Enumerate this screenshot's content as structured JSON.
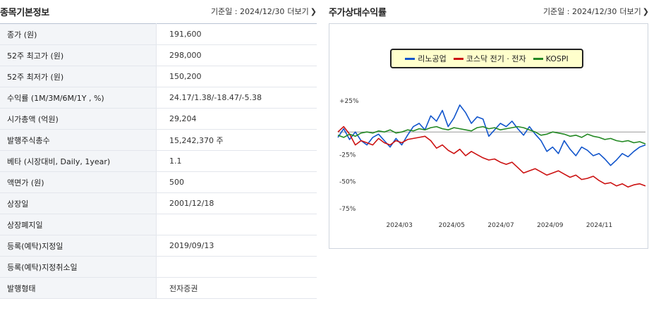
{
  "left": {
    "title": "종목기본정보",
    "date_label": "기준일 : 2024/12/30",
    "more_label": "더보기",
    "rows": [
      {
        "label": "종가 (원)",
        "value": "191,600"
      },
      {
        "label": "52주 최고가 (원)",
        "value": "298,000"
      },
      {
        "label": "52주 최저가 (원)",
        "value": "150,200"
      },
      {
        "label": "수익률 (1M/3M/6M/1Y , %)",
        "value": "24.17/1.38/-18.47/-5.38"
      },
      {
        "label": "시가총액 (억원)",
        "value": "29,204"
      },
      {
        "label": "발행주식총수",
        "value": "15,242,370 주"
      },
      {
        "label": "베타 (시장대비, Daily, 1year)",
        "value": "1.1"
      },
      {
        "label": "액면가 (원)",
        "value": "500"
      },
      {
        "label": "상장일",
        "value": "2001/12/18"
      },
      {
        "label": "상장폐지일",
        "value": ""
      },
      {
        "label": "등록(예탁)지정일",
        "value": "2019/09/13"
      },
      {
        "label": "등록(예탁)지정취소일",
        "value": ""
      },
      {
        "label": "발행형태",
        "value": "전자증권"
      }
    ]
  },
  "right": {
    "title": "주가상대수익률",
    "date_label": "기준일 : 2024/12/30",
    "more_label": "더보기"
  },
  "chart_data": {
    "type": "line",
    "title": "주가상대수익률",
    "ylabel": "",
    "xlabel": "",
    "ylim": [
      -75,
      40
    ],
    "y_ticks": [
      25,
      -25,
      -50,
      -75
    ],
    "y_tick_labels": [
      "+25%",
      "-25%",
      "-50%",
      "-75%"
    ],
    "x_ticks": [
      "2024/03",
      "2024/05",
      "2024/07",
      "2024/09",
      "2024/11"
    ],
    "legend_position": "top-center",
    "series": [
      {
        "name": "리노공업",
        "color": "#1155cc",
        "values": [
          -5,
          3,
          -7,
          0,
          -8,
          -12,
          -5,
          -2,
          -8,
          -14,
          -6,
          -12,
          -3,
          5,
          8,
          2,
          15,
          10,
          20,
          5,
          13,
          25,
          18,
          8,
          14,
          12,
          -4,
          2,
          8,
          5,
          10,
          3,
          -3,
          5,
          -2,
          -8,
          -18,
          -14,
          -20,
          -8,
          -16,
          -22,
          -14,
          -17,
          -22,
          -20,
          -25,
          -31,
          -26,
          -20,
          -23,
          -18,
          -14,
          -12
        ]
      },
      {
        "name": "코스닥 전기 · 전자",
        "color": "#cc1111",
        "values": [
          0,
          5,
          -2,
          -12,
          -8,
          -10,
          -12,
          -6,
          -10,
          -12,
          -8,
          -10,
          -7,
          -6,
          -5,
          -4,
          -8,
          -15,
          -12,
          -17,
          -20,
          -16,
          -22,
          -18,
          -21,
          -24,
          -26,
          -25,
          -28,
          -30,
          -28,
          -33,
          -38,
          -36,
          -34,
          -37,
          -40,
          -38,
          -36,
          -39,
          -42,
          -40,
          -44,
          -43,
          -41,
          -45,
          -48,
          -47,
          -50,
          -48,
          -51,
          -49,
          -48,
          -50
        ]
      },
      {
        "name": "KOSPI",
        "color": "#228822",
        "values": [
          -3,
          -5,
          -2,
          -4,
          -1,
          0,
          -1,
          1,
          0,
          2,
          -1,
          0,
          2,
          1,
          3,
          2,
          4,
          5,
          3,
          2,
          4,
          3,
          2,
          1,
          4,
          5,
          3,
          4,
          2,
          3,
          4,
          5,
          4,
          2,
          0,
          -3,
          -2,
          0,
          -1,
          -2,
          -4,
          -3,
          -5,
          -2,
          -4,
          -5,
          -7,
          -6,
          -8,
          -9,
          -8,
          -10,
          -9,
          -11
        ]
      }
    ]
  }
}
